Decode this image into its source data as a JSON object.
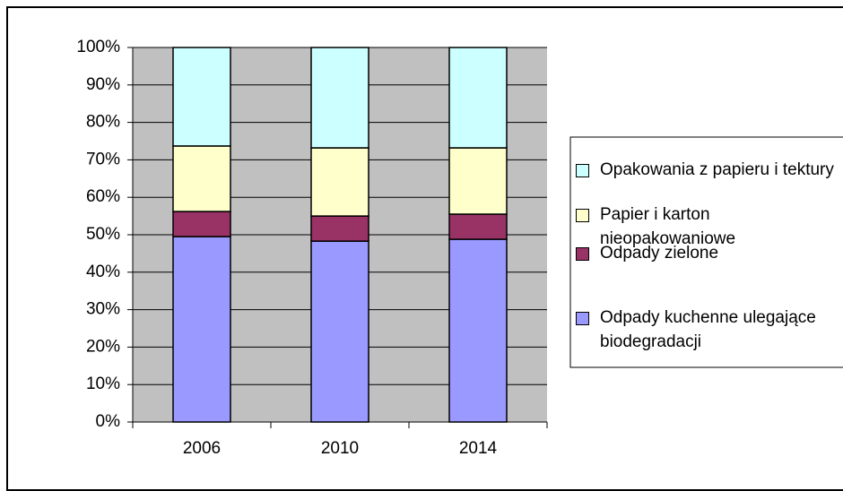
{
  "chart_data": {
    "type": "stacked_bar_percent",
    "categories": [
      "2006",
      "2010",
      "2014"
    ],
    "series": [
      {
        "name": "Odpady kuchenne ulegające biodegradacji",
        "color": "#9999ff",
        "values": [
          49.5,
          48.3,
          48.8
        ]
      },
      {
        "name": "Odpady zielone",
        "color": "#993366",
        "values": [
          6.7,
          6.7,
          6.7
        ]
      },
      {
        "name": "Papier i karton nieopakowaniowe",
        "color": "#ffffcc",
        "values": [
          17.5,
          18.2,
          17.7
        ]
      },
      {
        "name": "Opakowania z papieru i tektury",
        "color": "#ccffff",
        "values": [
          26.3,
          26.8,
          26.8
        ]
      }
    ],
    "ylim": [
      0,
      100
    ],
    "yticks": [
      {
        "value": 0,
        "label": "0%"
      },
      {
        "value": 10,
        "label": "10%"
      },
      {
        "value": 20,
        "label": "20%"
      },
      {
        "value": 30,
        "label": "30%"
      },
      {
        "value": 40,
        "label": "40%"
      },
      {
        "value": 50,
        "label": "50%"
      },
      {
        "value": 60,
        "label": "60%"
      },
      {
        "value": 70,
        "label": "70%"
      },
      {
        "value": 80,
        "label": "80%"
      },
      {
        "value": 90,
        "label": "90%"
      },
      {
        "value": 100,
        "label": "100%"
      }
    ],
    "grid": true,
    "plot_background": "#c0c0c0",
    "legend": "right"
  }
}
